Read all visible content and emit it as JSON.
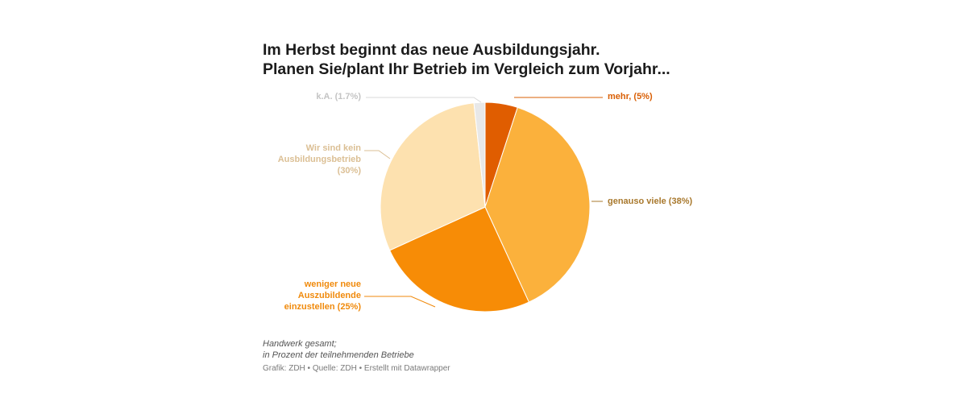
{
  "header": {
    "title_line1": "Im Herbst beginnt das neue Ausbildungsjahr.",
    "title_line2": "Planen Sie/plant Ihr Betrieb im Vergleich zum Vorjahr..."
  },
  "chart_data": {
    "type": "pie",
    "slices": [
      {
        "label_lines": [
          "mehr, (5%)"
        ],
        "value": 5,
        "color": "#e05d00",
        "label_color": "#d95f05"
      },
      {
        "label_lines": [
          "genauso viele (38%)"
        ],
        "value": 38,
        "color": "#fbb13c",
        "label_color": "#a8782c"
      },
      {
        "label_lines": [
          "weniger neue",
          "Auszubildende",
          "einzustellen (25%)"
        ],
        "value": 25,
        "color": "#f78c06",
        "label_color": "#f08a0c"
      },
      {
        "label_lines": [
          "Wir sind kein",
          "Ausbildungsbetrieb",
          "(30%)"
        ],
        "value": 30,
        "color": "#fde1af",
        "label_color": "#dbbf94"
      },
      {
        "label_lines": [
          "k.A. (1.7%)"
        ],
        "value": 1.7,
        "color": "#e8e8e8",
        "label_color": "#c4c4c4"
      }
    ]
  },
  "footer": {
    "note_line1": "Handwerk gesamt;",
    "note_line2": "in Prozent der teilnehmenden Betriebe",
    "credits": "Grafik: ZDH • Quelle: ZDH • Erstellt mit Datawrapper"
  }
}
